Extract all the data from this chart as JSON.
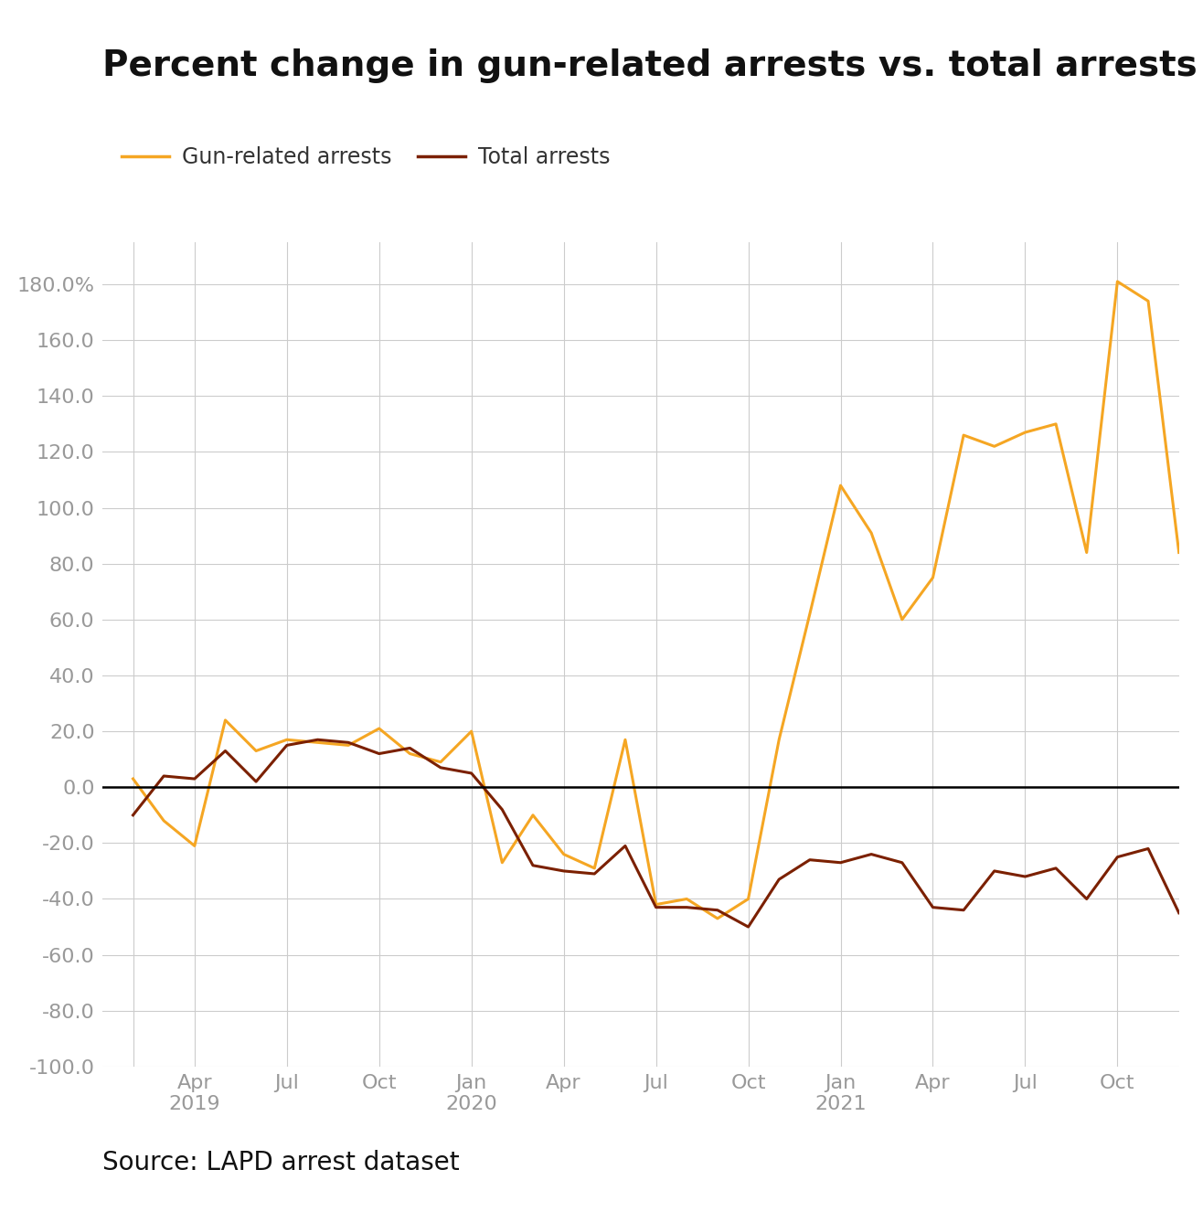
{
  "title": "Percent change in gun-related arrests vs. total arrests",
  "source": "Source: LAPD arrest dataset",
  "gun_label": "Gun-related arrests",
  "total_label": "Total arrests",
  "gun_color": "#F5A623",
  "total_color": "#7B2000",
  "zero_line_color": "#000000",
  "background_color": "#ffffff",
  "grid_color": "#cccccc",
  "tick_label_color": "#999999",
  "title_fontsize": 28,
  "legend_fontsize": 17,
  "axis_fontsize": 16,
  "source_fontsize": 20,
  "ylim": [
    -100.0,
    195.0
  ],
  "yticks": [
    -100.0,
    -80.0,
    -60.0,
    -40.0,
    -20.0,
    0.0,
    20.0,
    40.0,
    60.0,
    80.0,
    100.0,
    120.0,
    140.0,
    160.0,
    180.0
  ],
  "x_tick_labels": [
    "",
    "Apr\n2019",
    "Jul",
    "Oct",
    "Jan\n2020",
    "Apr",
    "Jul",
    "Oct",
    "Jan\n2021",
    "Apr",
    "Jul",
    "Oct"
  ],
  "x_tick_positions": [
    0,
    2,
    5,
    8,
    11,
    14,
    17,
    20,
    23,
    26,
    29,
    32
  ],
  "gun_data": [
    3.0,
    -12.0,
    -21.0,
    24.0,
    13.0,
    17.0,
    16.0,
    15.0,
    21.0,
    12.0,
    9.0,
    20.0,
    -27.0,
    -10.0,
    -24.0,
    -29.0,
    17.0,
    -42.0,
    -40.0,
    -47.0,
    -40.0,
    17.0,
    62.0,
    108.0,
    91.0,
    60.0,
    75.0,
    126.0,
    122.0,
    127.0,
    130.0,
    84.0,
    181.0,
    174.0,
    84.0
  ],
  "total_data": [
    -10.0,
    4.0,
    3.0,
    13.0,
    2.0,
    15.0,
    17.0,
    16.0,
    12.0,
    14.0,
    7.0,
    5.0,
    -8.0,
    -28.0,
    -30.0,
    -31.0,
    -21.0,
    -43.0,
    -43.0,
    -44.0,
    -50.0,
    -33.0,
    -26.0,
    -27.0,
    -24.0,
    -27.0,
    -43.0,
    -44.0,
    -30.0,
    -32.0,
    -29.0,
    -40.0,
    -25.0,
    -22.0,
    -45.0
  ],
  "line_width": 2.2
}
